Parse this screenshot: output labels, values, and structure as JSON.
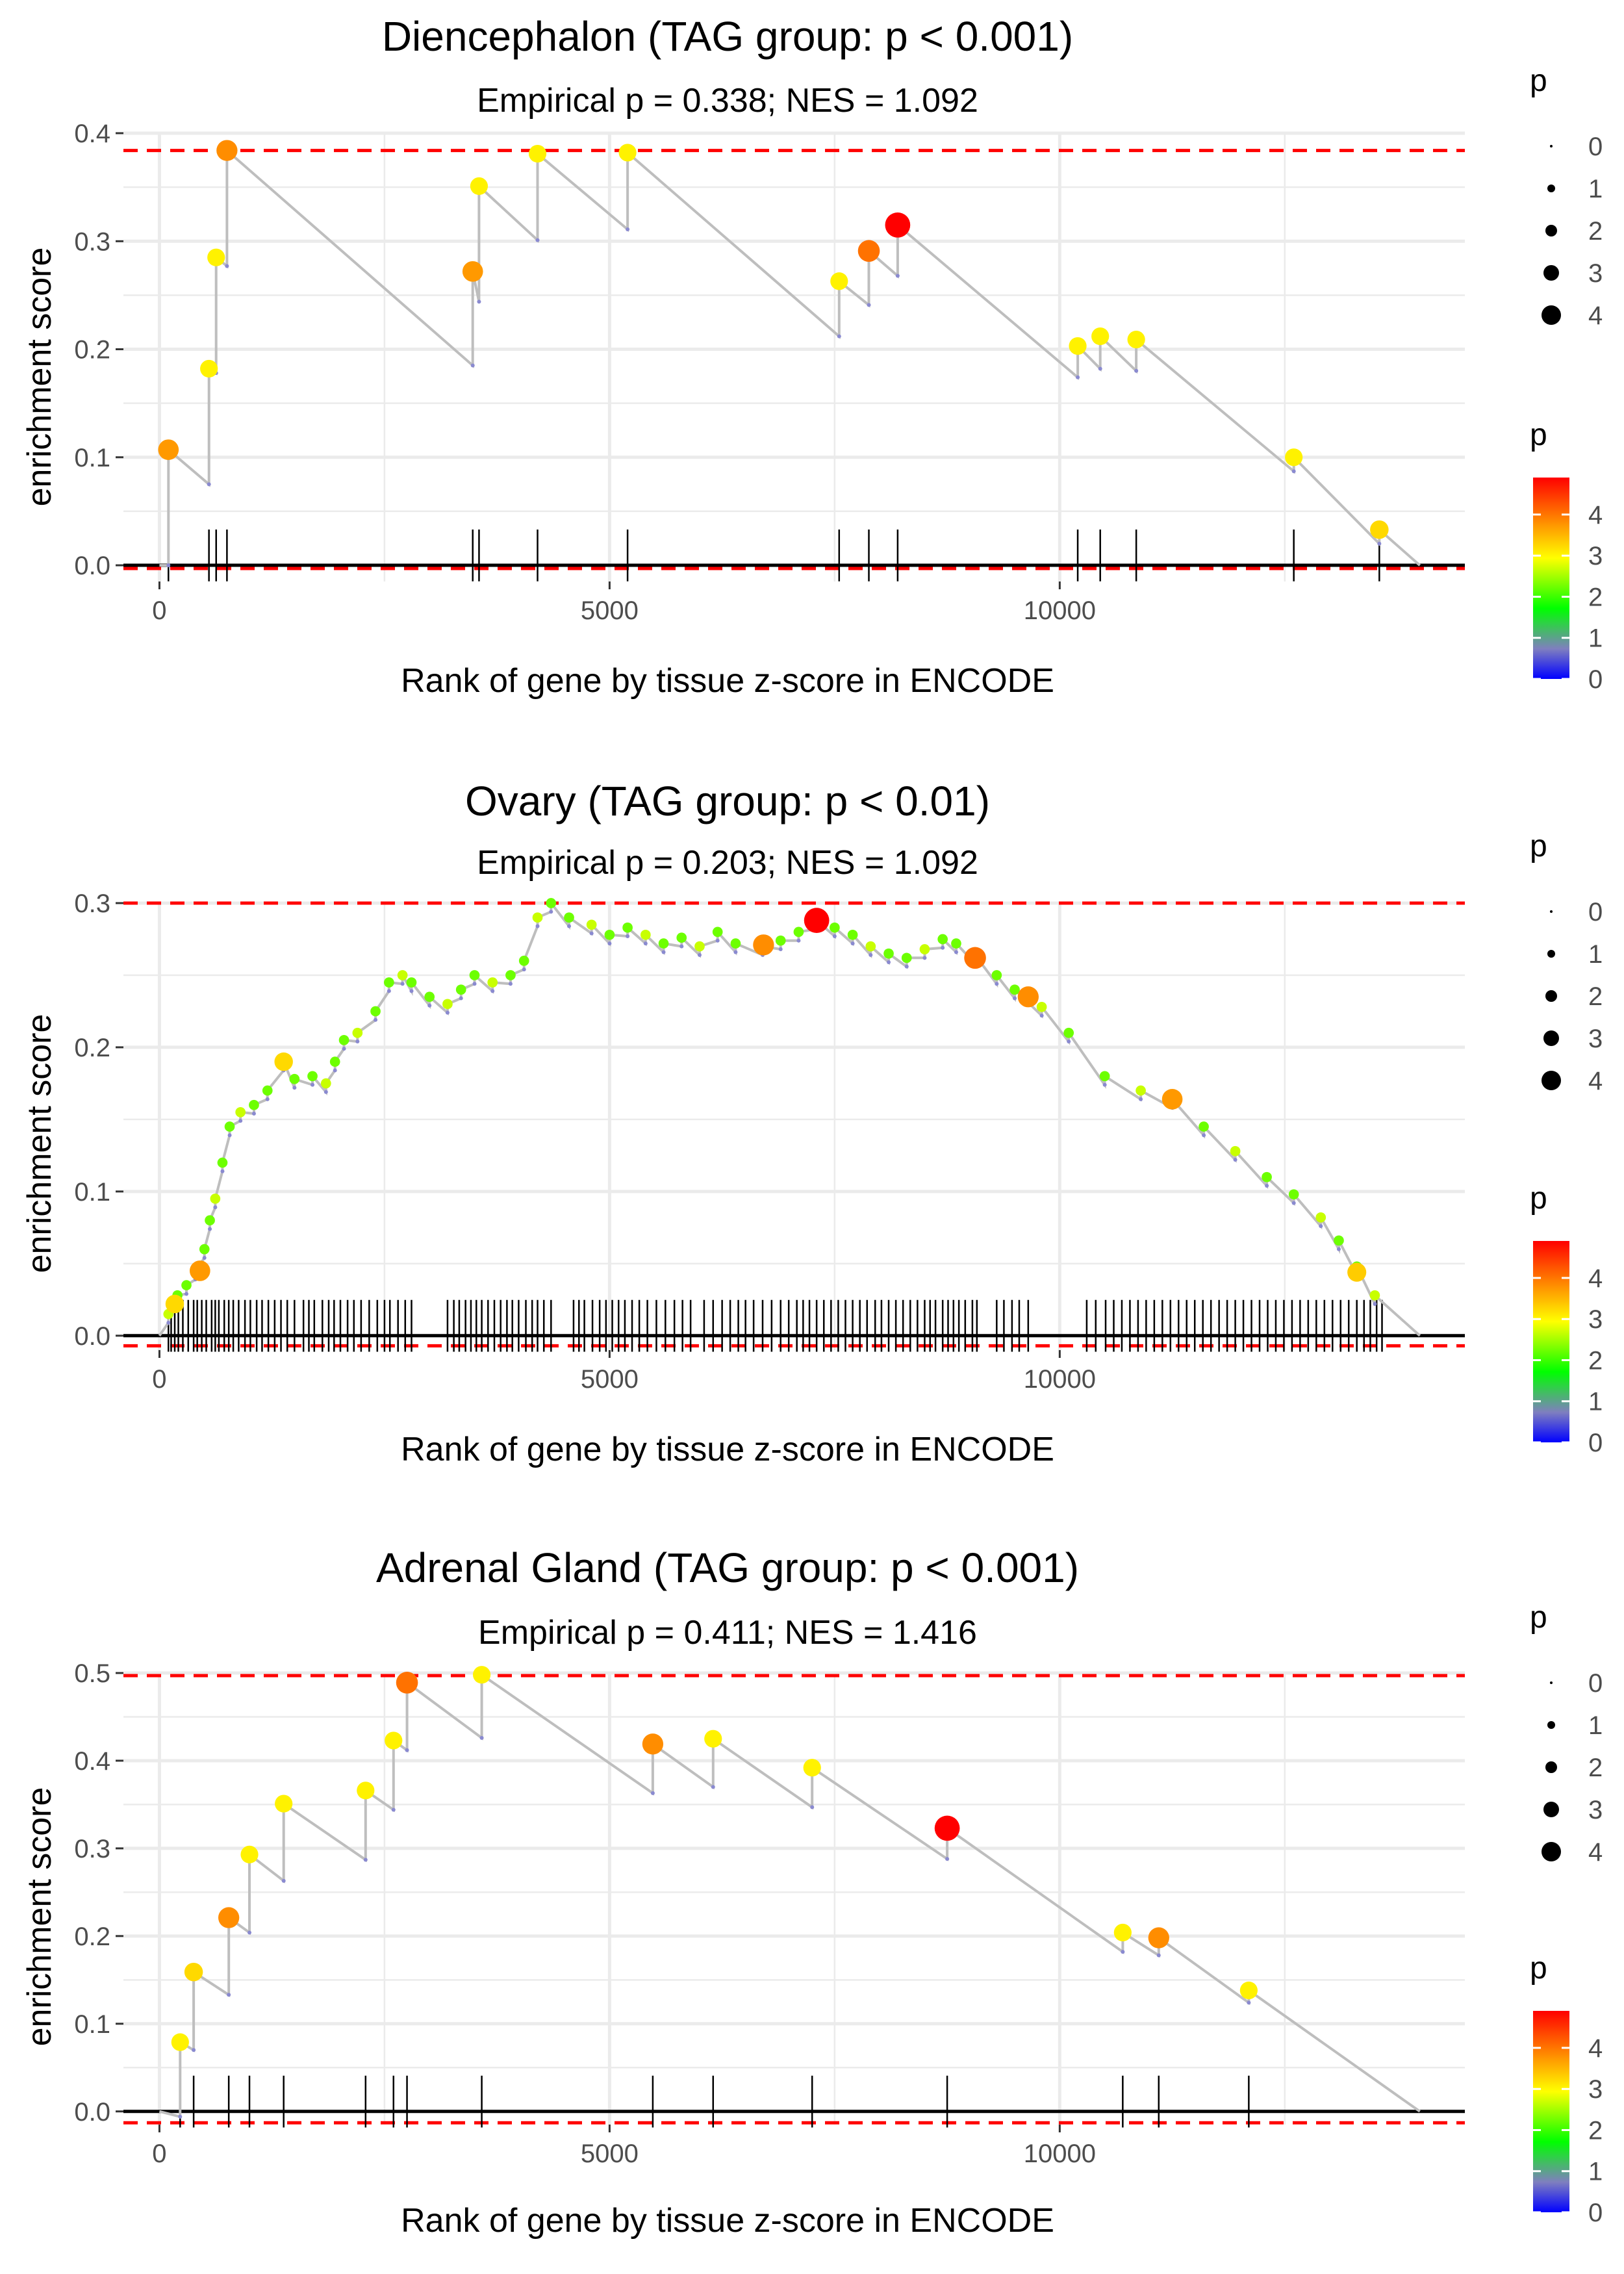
{
  "colors": {
    "grid": "#ebebeb",
    "line": "#bebebe",
    "threshold": "#ff0000",
    "axis_zero": "#000000",
    "text": "#1a1a1a",
    "tick_text": "#4d4d4d",
    "colorbar_stops": [
      "#0000ff",
      "#7f7fbf",
      "#00ff00",
      "#ffff00",
      "#ff8000",
      "#ff0000"
    ]
  },
  "shared": {
    "xlabel": "Rank of gene by tissue z-score in ENCODE",
    "ylabel": "enrichment score",
    "size_legend_title": "p",
    "color_legend_title": "p",
    "size_legend_labels": [
      "0",
      "1",
      "2",
      "3",
      "4"
    ],
    "color_legend_labels": [
      "4",
      "3",
      "2",
      "1",
      "0"
    ]
  },
  "chart_data": [
    {
      "type": "scatter",
      "title": "Diencephalon (TAG group: p < 0.001)",
      "subtitle": "Empirical p = 0.338; NES = 1.092",
      "xlabel": "Rank of gene by tissue z-score in ENCODE",
      "ylabel": "enrichment score",
      "xlim": [
        -400,
        14500
      ],
      "ylim": [
        -0.015,
        0.4
      ],
      "xticks": [
        0,
        5000,
        10000
      ],
      "xtick_labels": [
        "0",
        "5000",
        "10000"
      ],
      "yticks": [
        0,
        0.1,
        0.2,
        0.3,
        0.4
      ],
      "ytick_labels": [
        "0.0",
        "0.1",
        "0.2",
        "0.3",
        "0.4"
      ],
      "hlines": [
        0.384,
        -0.003
      ],
      "end_rank": 14000,
      "points": [
        {
          "x": 100,
          "before": 0.0,
          "y": 0.107,
          "p": 3.7
        },
        {
          "x": 550,
          "before": 0.075,
          "y": 0.182,
          "p": 3.0
        },
        {
          "x": 630,
          "before": 0.178,
          "y": 0.285,
          "p": 3.0
        },
        {
          "x": 750,
          "before": 0.277,
          "y": 0.384,
          "p": 3.8
        },
        {
          "x": 3480,
          "before": 0.185,
          "y": 0.272,
          "p": 3.7
        },
        {
          "x": 3550,
          "before": 0.244,
          "y": 0.351,
          "p": 3.0
        },
        {
          "x": 4200,
          "before": 0.301,
          "y": 0.381,
          "p": 3.0
        },
        {
          "x": 5200,
          "before": 0.311,
          "y": 0.382,
          "p": 3.0
        },
        {
          "x": 7550,
          "before": 0.212,
          "y": 0.263,
          "p": 3.0
        },
        {
          "x": 7880,
          "before": 0.241,
          "y": 0.291,
          "p": 4.0
        },
        {
          "x": 8200,
          "before": 0.268,
          "y": 0.315,
          "p": 4.8
        },
        {
          "x": 10200,
          "before": 0.174,
          "y": 0.203,
          "p": 3.0
        },
        {
          "x": 10450,
          "before": 0.182,
          "y": 0.212,
          "p": 3.0
        },
        {
          "x": 10850,
          "before": 0.18,
          "y": 0.209,
          "p": 3.0
        },
        {
          "x": 12600,
          "before": 0.087,
          "y": 0.1,
          "p": 3.0
        },
        {
          "x": 13550,
          "before": 0.02,
          "y": 0.033,
          "p": 3.2
        }
      ]
    },
    {
      "type": "scatter",
      "title": "Ovary (TAG group: p < 0.01)",
      "subtitle": "Empirical p = 0.203; NES = 1.092",
      "xlabel": "Rank of gene by tissue z-score in ENCODE",
      "ylabel": "enrichment score",
      "xlim": [
        -400,
        14500
      ],
      "ylim": [
        -0.01,
        0.3
      ],
      "xticks": [
        0,
        5000,
        10000
      ],
      "xtick_labels": [
        "0",
        "5000",
        "10000"
      ],
      "yticks": [
        0,
        0.1,
        0.2,
        0.3
      ],
      "ytick_labels": [
        "0.0",
        "0.1",
        "0.2",
        "0.3"
      ],
      "hlines": [
        0.3,
        -0.007
      ],
      "end_rank": 14000,
      "step": 0.006,
      "highlights": [
        {
          "x": 170,
          "y": 0.022,
          "p": 3.2
        },
        {
          "x": 450,
          "y": 0.045,
          "p": 3.7
        },
        {
          "x": 1380,
          "y": 0.19,
          "p": 3.2
        },
        {
          "x": 6710,
          "y": 0.271,
          "p": 3.8
        },
        {
          "x": 7300,
          "y": 0.288,
          "p": 4.8
        },
        {
          "x": 9060,
          "y": 0.262,
          "p": 4.0
        },
        {
          "x": 9650,
          "y": 0.235,
          "p": 3.8
        },
        {
          "x": 11250,
          "y": 0.164,
          "p": 3.7
        },
        {
          "x": 13300,
          "y": 0.044,
          "p": 3.3
        }
      ],
      "curve": [
        [
          100,
          0.015
        ],
        [
          200,
          0.028
        ],
        [
          300,
          0.035
        ],
        [
          400,
          0.045
        ],
        [
          500,
          0.06
        ],
        [
          560,
          0.08
        ],
        [
          620,
          0.095
        ],
        [
          700,
          0.12
        ],
        [
          780,
          0.145
        ],
        [
          900,
          0.155
        ],
        [
          1050,
          0.16
        ],
        [
          1200,
          0.17
        ],
        [
          1380,
          0.19
        ],
        [
          1500,
          0.178
        ],
        [
          1700,
          0.18
        ],
        [
          1850,
          0.175
        ],
        [
          1950,
          0.19
        ],
        [
          2050,
          0.205
        ],
        [
          2200,
          0.21
        ],
        [
          2400,
          0.225
        ],
        [
          2550,
          0.245
        ],
        [
          2700,
          0.25
        ],
        [
          2800,
          0.245
        ],
        [
          3000,
          0.235
        ],
        [
          3200,
          0.23
        ],
        [
          3350,
          0.24
        ],
        [
          3500,
          0.25
        ],
        [
          3700,
          0.245
        ],
        [
          3900,
          0.25
        ],
        [
          4050,
          0.26
        ],
        [
          4200,
          0.29
        ],
        [
          4350,
          0.3
        ],
        [
          4550,
          0.29
        ],
        [
          4800,
          0.285
        ],
        [
          5000,
          0.278
        ],
        [
          5200,
          0.283
        ],
        [
          5400,
          0.278
        ],
        [
          5600,
          0.272
        ],
        [
          5800,
          0.276
        ],
        [
          6000,
          0.27
        ],
        [
          6200,
          0.28
        ],
        [
          6400,
          0.272
        ],
        [
          6700,
          0.27
        ],
        [
          6900,
          0.274
        ],
        [
          7100,
          0.28
        ],
        [
          7300,
          0.288
        ],
        [
          7500,
          0.283
        ],
        [
          7700,
          0.278
        ],
        [
          7900,
          0.27
        ],
        [
          8100,
          0.265
        ],
        [
          8300,
          0.262
        ],
        [
          8500,
          0.268
        ],
        [
          8700,
          0.275
        ],
        [
          8850,
          0.272
        ],
        [
          9060,
          0.264
        ],
        [
          9300,
          0.25
        ],
        [
          9500,
          0.24
        ],
        [
          9800,
          0.228
        ],
        [
          10100,
          0.21
        ],
        [
          10500,
          0.18
        ],
        [
          10900,
          0.17
        ],
        [
          11250,
          0.164
        ],
        [
          11600,
          0.145
        ],
        [
          11950,
          0.128
        ],
        [
          12300,
          0.11
        ],
        [
          12600,
          0.098
        ],
        [
          12900,
          0.082
        ],
        [
          13100,
          0.066
        ],
        [
          13300,
          0.048
        ],
        [
          13500,
          0.028
        ]
      ],
      "rug": [
        100,
        130,
        170,
        210,
        260,
        320,
        380,
        420,
        470,
        520,
        580,
        620,
        660,
        720,
        770,
        820,
        880,
        950,
        1010,
        1080,
        1140,
        1210,
        1280,
        1350,
        1420,
        1500,
        1600,
        1660,
        1720,
        1810,
        1880,
        1940,
        2010,
        2090,
        2160,
        2240,
        2330,
        2420,
        2500,
        2560,
        2650,
        2730,
        2800,
        3200,
        3270,
        3330,
        3400,
        3460,
        3520,
        3580,
        3650,
        3720,
        3790,
        3860,
        3920,
        3990,
        4070,
        4140,
        4200,
        4270,
        4350,
        4600,
        4660,
        4720,
        4810,
        4890,
        4960,
        5030,
        5100,
        5170,
        5250,
        5330,
        5420,
        5520,
        5620,
        5720,
        5810,
        5900,
        6050,
        6150,
        6250,
        6340,
        6430,
        6510,
        6600,
        6700,
        6800,
        6900,
        6990,
        7080,
        7150,
        7220,
        7300,
        7380,
        7460,
        7540,
        7620,
        7700,
        7780,
        7860,
        7950,
        8020,
        8100,
        8180,
        8260,
        8340,
        8420,
        8500,
        8560,
        8620,
        8700,
        8760,
        8820,
        8880,
        8950,
        9030,
        9080,
        9300,
        9380,
        9470,
        9550,
        9650,
        10300,
        10400,
        10510,
        10600,
        10690,
        10780,
        10870,
        10960,
        11050,
        11140,
        11230,
        11320,
        11410,
        11500,
        11590,
        11680,
        11770,
        11860,
        11950,
        12040,
        12130,
        12220,
        12310,
        12400,
        12490,
        12580,
        12670,
        12760,
        12850,
        12940,
        13030,
        13120,
        13210,
        13300,
        13380,
        13450,
        13520,
        13580
      ]
    },
    {
      "type": "scatter",
      "title": "Adrenal Gland (TAG group: p < 0.001)",
      "subtitle": "Empirical p = 0.411; NES = 1.416",
      "xlabel": "Rank of gene by tissue z-score in ENCODE",
      "ylabel": "enrichment score",
      "xlim": [
        -400,
        14500
      ],
      "ylim": [
        -0.015,
        0.5
      ],
      "xticks": [
        0,
        5000,
        10000
      ],
      "xtick_labels": [
        "0",
        "5000",
        "10000"
      ],
      "yticks": [
        0,
        0.1,
        0.2,
        0.3,
        0.4,
        0.5
      ],
      "ytick_labels": [
        "0.0",
        "0.1",
        "0.2",
        "0.3",
        "0.4",
        "0.5"
      ],
      "hlines": [
        0.497,
        -0.013
      ],
      "end_rank": 14000,
      "points": [
        {
          "x": 230,
          "before": -0.006,
          "y": 0.079,
          "p": 3.0
        },
        {
          "x": 380,
          "before": 0.07,
          "y": 0.159,
          "p": 3.2
        },
        {
          "x": 770,
          "before": 0.133,
          "y": 0.221,
          "p": 3.8
        },
        {
          "x": 1000,
          "before": 0.204,
          "y": 0.293,
          "p": 3.0
        },
        {
          "x": 1380,
          "before": 0.263,
          "y": 0.351,
          "p": 3.0
        },
        {
          "x": 2290,
          "before": 0.287,
          "y": 0.366,
          "p": 3.0
        },
        {
          "x": 2600,
          "before": 0.344,
          "y": 0.423,
          "p": 3.0
        },
        {
          "x": 2750,
          "before": 0.412,
          "y": 0.489,
          "p": 4.0
        },
        {
          "x": 3580,
          "before": 0.426,
          "y": 0.498,
          "p": 3.0
        },
        {
          "x": 5480,
          "before": 0.363,
          "y": 0.419,
          "p": 3.8
        },
        {
          "x": 6150,
          "before": 0.37,
          "y": 0.425,
          "p": 3.0
        },
        {
          "x": 7250,
          "before": 0.347,
          "y": 0.392,
          "p": 3.0
        },
        {
          "x": 8750,
          "before": 0.288,
          "y": 0.323,
          "p": 4.8
        },
        {
          "x": 10700,
          "before": 0.182,
          "y": 0.204,
          "p": 3.0
        },
        {
          "x": 11100,
          "before": 0.178,
          "y": 0.198,
          "p": 3.8
        },
        {
          "x": 12100,
          "before": 0.124,
          "y": 0.138,
          "p": 3.0
        }
      ]
    }
  ]
}
